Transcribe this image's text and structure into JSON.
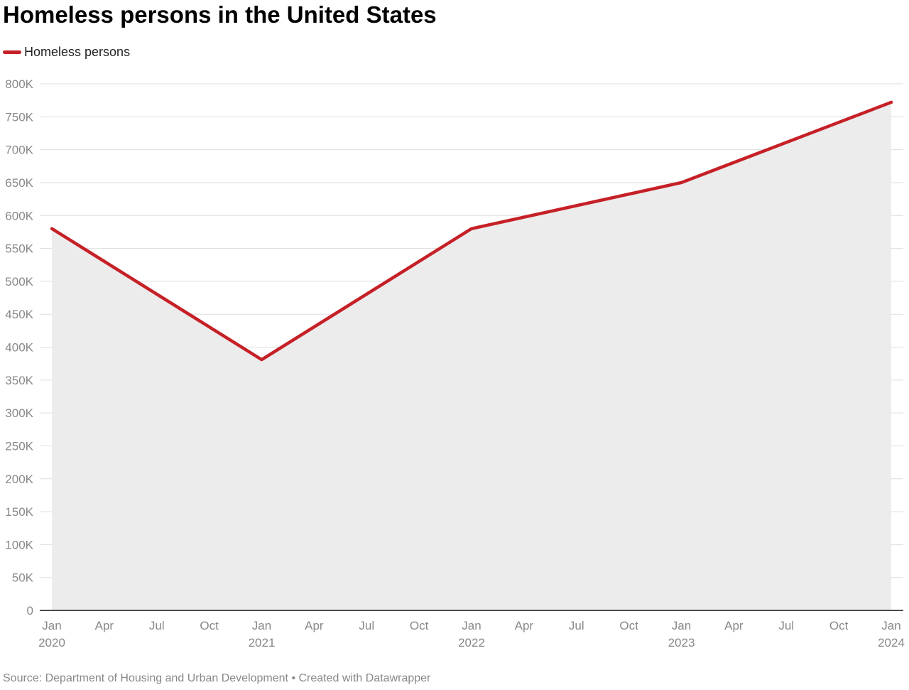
{
  "title": "Homeless persons in the United States",
  "source_text": "Source: Department of Housing and Urban Development • Created with Datawrapper",
  "colors": {
    "line": "#c62027",
    "area": "#ececec",
    "grid": "#dddddd",
    "axis": "#111111",
    "tick_text": "#888888"
  },
  "chart_data": {
    "type": "area",
    "title": "Homeless persons in the United States",
    "xlabel": "",
    "ylabel": "",
    "legend": "top-left",
    "grid": true,
    "x": [
      "2020-01",
      "2021-01",
      "2022-01",
      "2023-01",
      "2024-01"
    ],
    "series": [
      {
        "name": "Homeless persons",
        "values": [
          580000,
          381000,
          580000,
          650000,
          772000
        ]
      }
    ],
    "ylim": [
      0,
      800000
    ],
    "y_ticks": [
      {
        "value": 0,
        "label": "0"
      },
      {
        "value": 50000,
        "label": "50K"
      },
      {
        "value": 100000,
        "label": "100K"
      },
      {
        "value": 150000,
        "label": "150K"
      },
      {
        "value": 200000,
        "label": "200K"
      },
      {
        "value": 250000,
        "label": "250K"
      },
      {
        "value": 300000,
        "label": "300K"
      },
      {
        "value": 350000,
        "label": "350K"
      },
      {
        "value": 400000,
        "label": "400K"
      },
      {
        "value": 450000,
        "label": "450K"
      },
      {
        "value": 500000,
        "label": "500K"
      },
      {
        "value": 550000,
        "label": "550K"
      },
      {
        "value": 600000,
        "label": "600K"
      },
      {
        "value": 650000,
        "label": "650K"
      },
      {
        "value": 700000,
        "label": "700K"
      },
      {
        "value": 750000,
        "label": "750K"
      },
      {
        "value": 800000,
        "label": "800K"
      }
    ],
    "x_ticks": [
      {
        "label": "Jan",
        "sub": "2020"
      },
      {
        "label": "Apr",
        "sub": ""
      },
      {
        "label": "Jul",
        "sub": ""
      },
      {
        "label": "Oct",
        "sub": ""
      },
      {
        "label": "Jan",
        "sub": "2021"
      },
      {
        "label": "Apr",
        "sub": ""
      },
      {
        "label": "Jul",
        "sub": ""
      },
      {
        "label": "Oct",
        "sub": ""
      },
      {
        "label": "Jan",
        "sub": "2022"
      },
      {
        "label": "Apr",
        "sub": ""
      },
      {
        "label": "Jul",
        "sub": ""
      },
      {
        "label": "Oct",
        "sub": ""
      },
      {
        "label": "Jan",
        "sub": "2023"
      },
      {
        "label": "Apr",
        "sub": ""
      },
      {
        "label": "Jul",
        "sub": ""
      },
      {
        "label": "Oct",
        "sub": ""
      },
      {
        "label": "Jan",
        "sub": "2024"
      }
    ]
  }
}
